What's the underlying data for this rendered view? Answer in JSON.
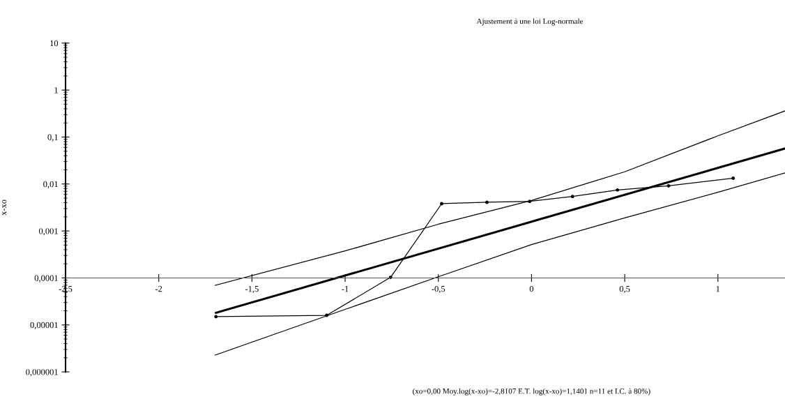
{
  "chart_data": {
    "type": "line",
    "title": "Ajustement à une loi Log-normale",
    "ylabel": "x-xo",
    "annotations": [
      "(xo=0,00 Moy.log(x-xo)=-2,8107 E.T. log(x-xo)=1,1401 n=11 et I.C. à 80%)"
    ],
    "log": "y",
    "grid": false,
    "legend": false,
    "line_style": "solid",
    "xlim": [
      -2.5,
      1.36
    ],
    "ylim": [
      1e-06,
      10
    ],
    "xticks": [
      {
        "value": -2.5,
        "label": "-2,5"
      },
      -2,
      {
        "value": -1.5,
        "label": "-1,5"
      },
      -1,
      {
        "value": -0.5,
        "label": "-0,5"
      },
      0,
      {
        "value": 0.5,
        "label": "0,5"
      },
      1
    ],
    "yticks": [
      {
        "value": 1e-06,
        "label": "0,000001"
      },
      {
        "value": 1e-05,
        "label": "0,00001"
      },
      {
        "value": 0.0001,
        "label": "0,0001"
      },
      {
        "value": 0.001,
        "label": "0,001"
      },
      {
        "value": 0.01,
        "label": "0,01"
      },
      {
        "value": 0.1,
        "label": "0,1"
      },
      1,
      10
    ],
    "series": [
      {
        "color": "#000000",
        "marker": "circle",
        "x": [
          -1.693,
          -1.099,
          -0.756,
          -0.482,
          -0.239,
          -0.01,
          0.22,
          0.461,
          0.735,
          1.082
        ],
        "values": [
          1.5e-05,
          1.6e-05,
          0.000103,
          0.00381,
          0.00408,
          0.00427,
          0.00542,
          0.00745,
          0.00914,
          0.0133
        ]
      },
      {
        "color": "#000000",
        "marker": "none",
        "x": [
          -1.693,
          1.36
        ],
        "values": [
          1.81e-05,
          0.0569
        ]
      },
      {
        "color": "#000000",
        "marker": "none",
        "x": [
          -1.697,
          -1,
          -0.5,
          0,
          0.5,
          1,
          1.36
        ],
        "values": [
          6.97e-05,
          0.000376,
          0.00139,
          0.00446,
          0.0182,
          0.106,
          0.36
        ]
      },
      {
        "color": "#000000",
        "marker": "none",
        "x": [
          -1.697,
          -1,
          -0.5,
          0,
          0.5,
          1,
          1.36
        ],
        "values": [
          2.28e-06,
          2.14e-05,
          0.000106,
          0.000512,
          0.0019,
          0.00665,
          0.0172
        ]
      }
    ]
  }
}
